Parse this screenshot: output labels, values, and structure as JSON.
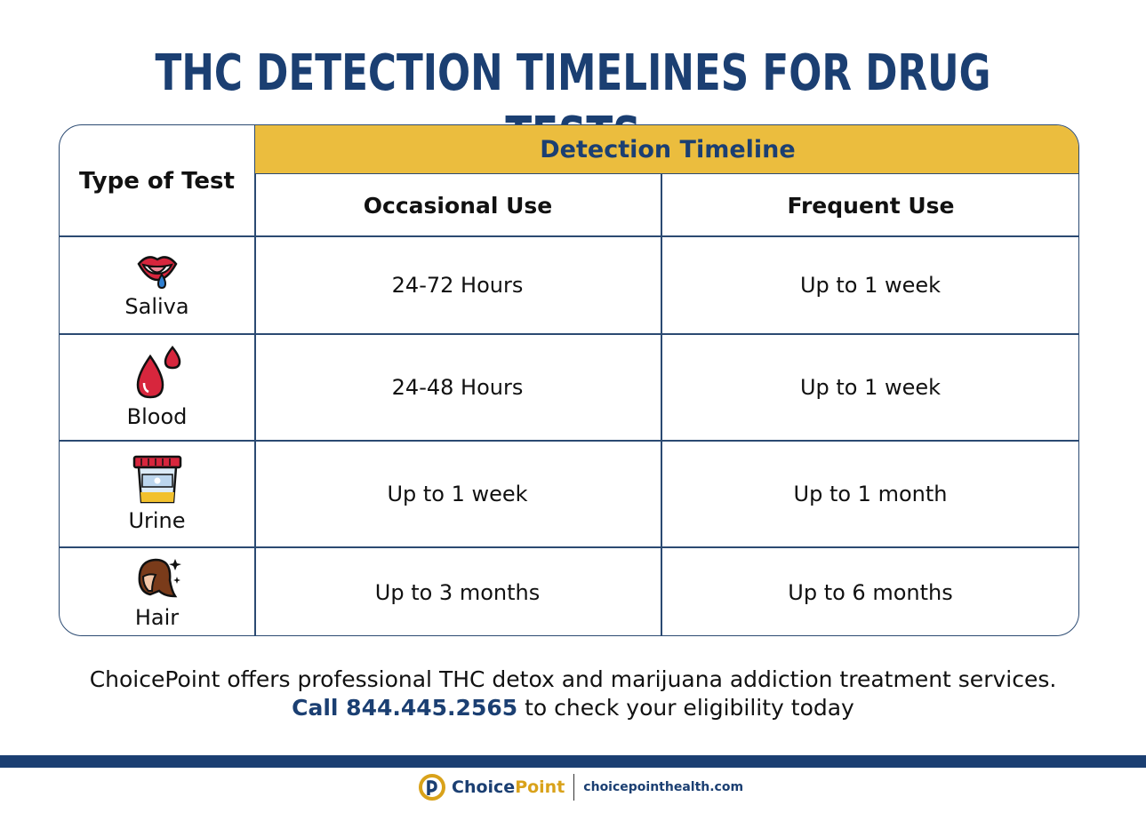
{
  "title": "THC DETECTION TIMELINES FOR DRUG TESTS",
  "table": {
    "type_header": "Type of Test",
    "group_header": "Detection Timeline",
    "col_occasional": "Occasional Use",
    "col_frequent": "Frequent Use",
    "rows": [
      {
        "type": "Saliva",
        "icon": "mouth-drop-icon",
        "occasional": "24-72 Hours",
        "frequent": "Up to 1 week"
      },
      {
        "type": "Blood",
        "icon": "blood-drops-icon",
        "occasional": "24-48 Hours",
        "frequent": "Up to 1 week"
      },
      {
        "type": "Urine",
        "icon": "urine-cup-icon",
        "occasional": "Up to 1 week",
        "frequent": "Up to 1 month"
      },
      {
        "type": "Hair",
        "icon": "hair-icon",
        "occasional": "Up to 3 months",
        "frequent": "Up to 6 months"
      }
    ]
  },
  "footer": {
    "line1": "ChoicePoint offers professional THC detox and marijuana addiction treatment services.",
    "phone": "Call 844.445.2565",
    "line2_rest": " to check your eligibility today",
    "brand_choice": "Choice",
    "brand_point": "Point",
    "website": "choicepointhealth.com"
  },
  "colors": {
    "navy": "#1b3f72",
    "gold": "#ebbd3e"
  }
}
